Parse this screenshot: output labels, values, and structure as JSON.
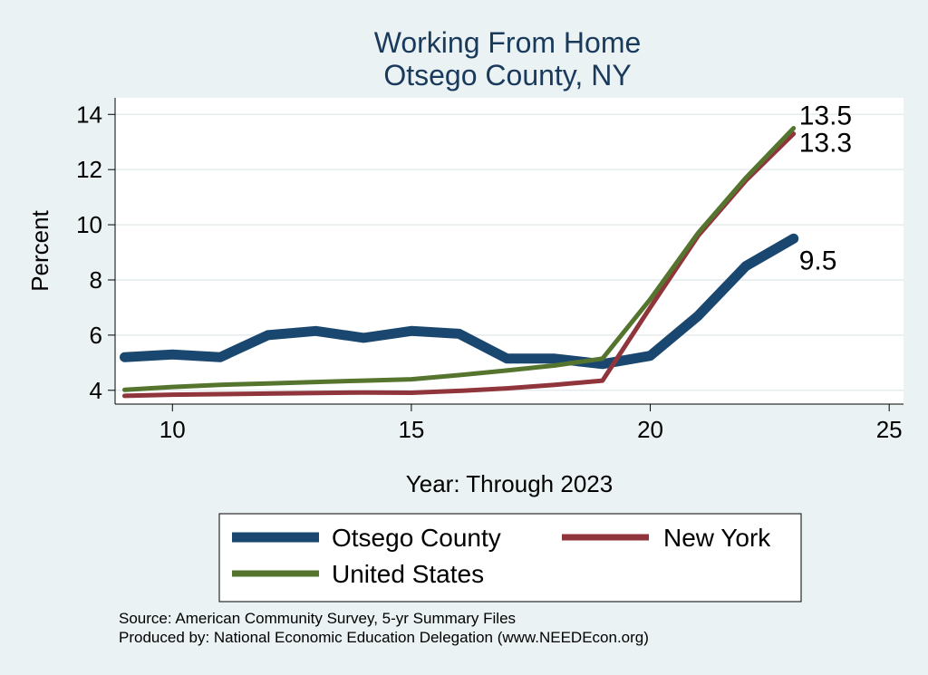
{
  "chart_data": {
    "type": "line",
    "title": [
      "Working From Home",
      "Otsego County, NY"
    ],
    "xlabel": "Year: Through 2023",
    "ylabel": "Percent",
    "xlim": [
      8.8,
      25.3
    ],
    "ylim": [
      3.5,
      14.6
    ],
    "xticks": [
      10,
      15,
      20,
      25
    ],
    "yticks": [
      4,
      6,
      8,
      10,
      12,
      14
    ],
    "grid": true,
    "legend_position": "bottom",
    "series": [
      {
        "name": "Otsego County",
        "color": "#1a476f",
        "x": [
          9,
          10,
          11,
          12,
          13,
          14,
          15,
          16,
          17,
          18,
          19,
          20,
          21,
          22,
          23
        ],
        "values": [
          5.2,
          5.3,
          5.2,
          6.0,
          6.15,
          5.9,
          6.15,
          6.05,
          5.15,
          5.15,
          4.95,
          5.25,
          6.7,
          8.5,
          9.5
        ],
        "end_label": "9.5"
      },
      {
        "name": "New York",
        "color": "#90353b",
        "x": [
          9,
          10,
          11,
          12,
          13,
          14,
          15,
          16,
          17,
          18,
          19,
          20,
          21,
          22,
          23
        ],
        "values": [
          3.8,
          3.84,
          3.86,
          3.88,
          3.9,
          3.92,
          3.91,
          3.98,
          4.07,
          4.2,
          4.35,
          7.0,
          9.6,
          11.6,
          13.3
        ],
        "end_label": "13.3"
      },
      {
        "name": "United States",
        "color": "#55752f",
        "x": [
          9,
          10,
          11,
          12,
          13,
          14,
          15,
          16,
          17,
          18,
          19,
          20,
          21,
          22,
          23
        ],
        "values": [
          4.02,
          4.12,
          4.2,
          4.25,
          4.3,
          4.35,
          4.4,
          4.55,
          4.72,
          4.9,
          5.15,
          7.3,
          9.7,
          11.7,
          13.5
        ],
        "end_label": "13.5"
      }
    ]
  },
  "source_lines": [
    "Source: American Community Survey, 5-yr Summary Files",
    "Produced by: National Economic Education Delegation (www.NEEDEcon.org)"
  ]
}
